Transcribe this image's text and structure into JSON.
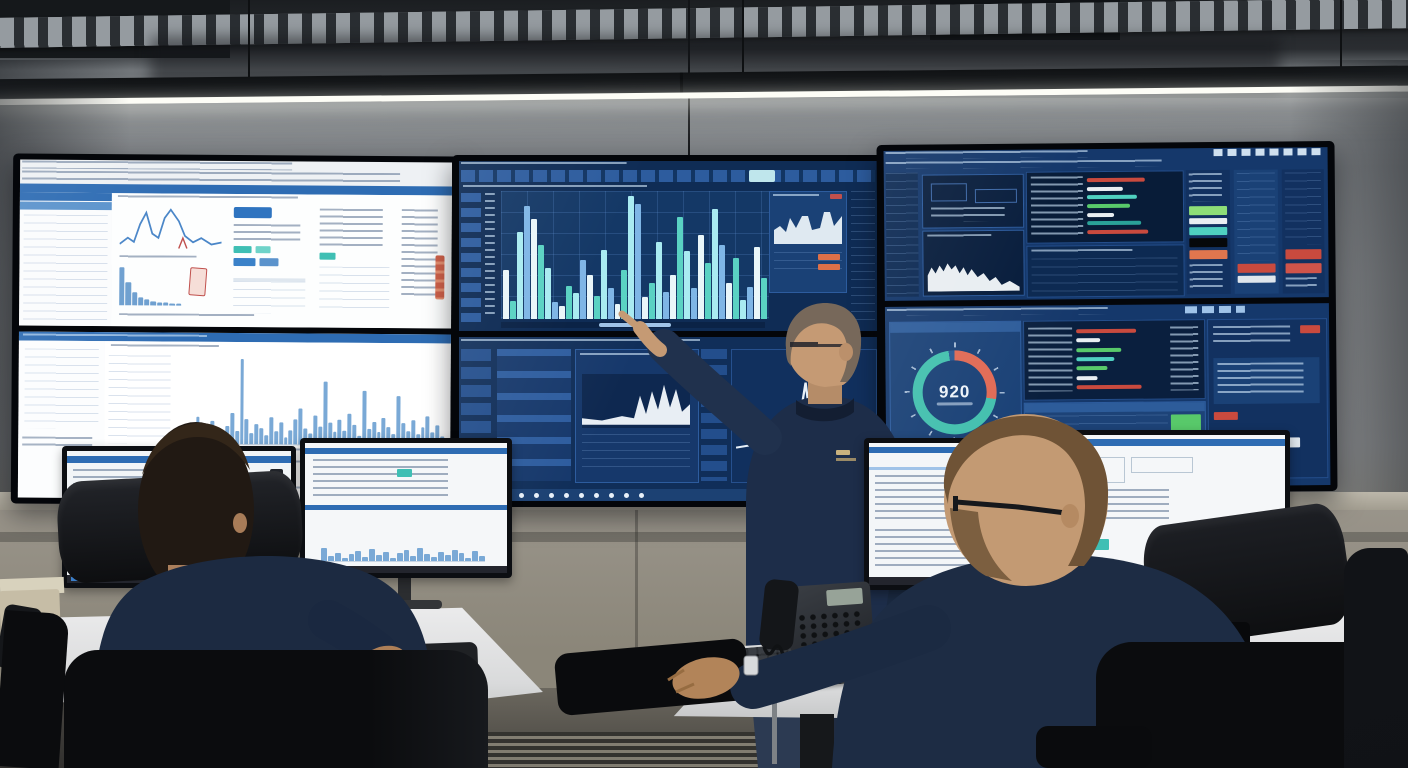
{
  "scene": {
    "type": "photograph",
    "setting": "network operations control room with three wall dashboards, a standing engineer pointing at the center display, and two seated operators at dual-monitor desks"
  },
  "wall_displays": {
    "left": {
      "theme": "light",
      "panes": [
        "analytics dashboard with line chart, buttons and tables",
        "bar chart dashboard"
      ]
    },
    "center": {
      "theme": "dark-blue",
      "panes": [
        "large multi-color bar chart with side area chart",
        "tiled monitoring panels with sparkline and spike line chart"
      ]
    },
    "right": {
      "theme": "dark-blue",
      "panes": [
        "dense tables with status bars and histogram",
        "circular gauge with allocation bars and tables"
      ]
    }
  },
  "gauge": {
    "value": "920",
    "ring_alert": "#e06a55",
    "ring_main": "#43c0ae",
    "ring_track": "#2a5a94"
  },
  "colors": {
    "accent_blue": "#2e6cb3",
    "panel_dark": "#16386b",
    "panel_darker": "#0a1f3e",
    "teal": "#4fd0c0",
    "green": "#58c96a",
    "red": "#c94a3e",
    "orange": "#e0764e",
    "tile_blue": "#3b9ad6",
    "tile_orange": "#e8602c"
  },
  "charts": {
    "left_bottom_bars": [
      12,
      18,
      8,
      22,
      30,
      14,
      10,
      26,
      16,
      9,
      20,
      34,
      15,
      95,
      28,
      12,
      22,
      18,
      10,
      30,
      14,
      24,
      8,
      16,
      28,
      40,
      18,
      12,
      32,
      20,
      70,
      24,
      14,
      28,
      16,
      34,
      22,
      10,
      60,
      18,
      26,
      14,
      30,
      20,
      12,
      55,
      24,
      16,
      28,
      12,
      20,
      32,
      15,
      22,
      10
    ],
    "left_histogram": [
      90,
      55,
      32,
      20,
      14,
      10,
      8,
      6,
      5,
      4
    ],
    "center_main_bars": [
      38,
      14,
      68,
      88,
      78,
      58,
      40,
      13,
      10,
      26,
      20,
      46,
      34,
      18,
      54,
      24,
      12,
      38,
      96,
      90,
      17,
      28,
      60,
      21,
      34,
      80,
      53,
      24,
      66,
      44,
      86,
      58,
      28,
      48,
      15,
      25,
      56,
      32
    ],
    "center_main_colors": [
      "#e9f6f9",
      "#5ad2c3",
      "#a9ebf1",
      "#7fb6e6"
    ],
    "monitor_l2_bars": [
      30,
      12,
      20,
      8,
      16,
      24,
      10,
      28,
      14,
      22,
      8,
      18,
      26,
      12,
      30,
      16,
      10,
      22,
      14,
      26,
      18,
      8,
      24,
      12
    ],
    "right_status_bars": [
      {
        "w": 64,
        "c": "#c94a3e"
      },
      {
        "w": 40,
        "c": "#e9eef2"
      },
      {
        "w": 56,
        "c": "#4fd0c0"
      },
      {
        "w": 48,
        "c": "#58c96a"
      },
      {
        "w": 30,
        "c": "#e9eef2"
      },
      {
        "w": 60,
        "c": "#2aa198"
      },
      {
        "w": 68,
        "c": "#c94a3e"
      }
    ],
    "right_alloc_bars": [
      {
        "w": 70,
        "c": "#c94a3e"
      },
      {
        "w": 28,
        "c": "#e9eef2"
      },
      {
        "w": 52,
        "c": "#58c96a"
      },
      {
        "w": 44,
        "c": "#4fd0c0"
      },
      {
        "w": 36,
        "c": "#58c96a"
      },
      {
        "w": 24,
        "c": "#e9eef2"
      },
      {
        "w": 76,
        "c": "#c94a3e"
      }
    ]
  },
  "taskbar": {
    "center_dot_count": 9
  }
}
